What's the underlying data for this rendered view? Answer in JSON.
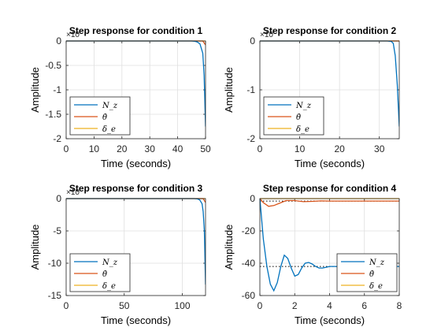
{
  "colors": {
    "series": [
      "#0072BD",
      "#D95319",
      "#EDB120"
    ],
    "grid": "#DFDFDF",
    "axis": "#262626",
    "reference": "#000000"
  },
  "chart_data": [
    {
      "type": "line",
      "title": "Step response for condition 1",
      "xlabel": "Time (seconds)",
      "ylabel": "Amplitude",
      "exponent_label": "×10",
      "xlim": [
        0,
        50
      ],
      "ylim": [
        -2,
        0
      ],
      "xticks": [
        "0",
        "10",
        "20",
        "30",
        "40",
        "50"
      ],
      "yticks": [
        "0",
        "-0.5",
        "-1",
        "-1.5",
        "-2"
      ],
      "grid": true,
      "legend": "bottom-left",
      "series": [
        {
          "name": "N_z",
          "x": [
            0,
            45,
            46,
            47,
            48,
            49,
            49.5,
            50
          ],
          "y": [
            0,
            0,
            -0.005,
            -0.02,
            -0.06,
            -0.25,
            -0.7,
            -1.75
          ]
        },
        {
          "name": "θ̇",
          "x": [
            0,
            49,
            50
          ],
          "y": [
            0,
            0,
            -0.08
          ]
        },
        {
          "name": "δ_e",
          "x": [
            0,
            50
          ],
          "y": [
            0,
            0
          ]
        }
      ]
    },
    {
      "type": "line",
      "title": "Step response for condition 2",
      "xlabel": "Time (seconds)",
      "ylabel": "Amplitude",
      "exponent_label": "×10",
      "xlim": [
        0,
        35
      ],
      "ylim": [
        -2,
        0
      ],
      "xticks": [
        "0",
        "10",
        "20",
        "30"
      ],
      "yticks": [
        "0",
        "-1",
        "-2"
      ],
      "grid": true,
      "legend": "bottom-left",
      "series": [
        {
          "name": "N_z",
          "x": [
            0,
            32,
            33,
            33.5,
            34,
            34.5,
            35
          ],
          "y": [
            0,
            0,
            -0.01,
            -0.05,
            -0.3,
            -0.9,
            -1.75
          ]
        },
        {
          "name": "θ̇",
          "x": [
            0,
            35
          ],
          "y": [
            0,
            0
          ]
        },
        {
          "name": "δ_e",
          "x": [
            0,
            35
          ],
          "y": [
            0,
            0
          ]
        }
      ]
    },
    {
      "type": "line",
      "title": "Step response for condition 3",
      "xlabel": "Time (seconds)",
      "ylabel": "Amplitude",
      "exponent_label": "×10",
      "xlim": [
        0,
        120
      ],
      "ylim": [
        -15,
        0
      ],
      "xticks": [
        "0",
        "50",
        "100"
      ],
      "yticks": [
        "0",
        "-5",
        "-10",
        "-15"
      ],
      "grid": true,
      "legend": "bottom-left",
      "series": [
        {
          "name": "N_z",
          "x": [
            0,
            110,
            113,
            115,
            117,
            118,
            119,
            120
          ],
          "y": [
            0,
            0,
            -0.05,
            -0.2,
            -0.8,
            -2,
            -5,
            -13.3
          ]
        },
        {
          "name": "θ̇",
          "x": [
            0,
            118,
            120
          ],
          "y": [
            0,
            0,
            -0.6
          ]
        },
        {
          "name": "δ_e",
          "x": [
            0,
            120
          ],
          "y": [
            0,
            0
          ]
        }
      ]
    },
    {
      "type": "line",
      "title": "Step response for condition 4",
      "xlabel": "Time (seconds)",
      "ylabel": "Amplitude",
      "xlim": [
        0,
        8
      ],
      "ylim": [
        -60,
        0
      ],
      "xticks": [
        "0",
        "2",
        "4",
        "6",
        "8"
      ],
      "yticks": [
        "0",
        "-20",
        "-40",
        "-60"
      ],
      "grid": true,
      "legend": "bottom-right",
      "series": [
        {
          "name": "N_z",
          "x": [
            0,
            0.2,
            0.4,
            0.6,
            0.8,
            1.0,
            1.2,
            1.4,
            1.6,
            1.8,
            2.0,
            2.2,
            2.4,
            2.6,
            2.8,
            3.0,
            3.2,
            3.4,
            3.6,
            3.8,
            4.0,
            4.4,
            5.0,
            6.0,
            7.0,
            8.0
          ],
          "y": [
            0,
            -25,
            -42,
            -53,
            -57,
            -52,
            -42,
            -35,
            -37,
            -43,
            -48,
            -47,
            -43,
            -40,
            -39.5,
            -40.5,
            -42,
            -43,
            -43,
            -42.5,
            -42,
            -42,
            -42,
            -42,
            -42,
            -42
          ]
        },
        {
          "name": "θ̇",
          "x": [
            0,
            0.2,
            0.5,
            0.8,
            1.1,
            1.5,
            2.0,
            2.5,
            3.0,
            3.5,
            4.0,
            5.0,
            6.0,
            8.0
          ],
          "y": [
            0,
            -2.5,
            -4.8,
            -4.3,
            -3,
            -1.2,
            -1.2,
            -1.9,
            -1.7,
            -1.4,
            -1.5,
            -1.5,
            -1.5,
            -1.5
          ]
        },
        {
          "name": "δ_e",
          "x": [
            0,
            8
          ],
          "y": [
            0,
            0
          ]
        }
      ],
      "reference_lines": [
        -1.5,
        -42
      ]
    }
  ]
}
